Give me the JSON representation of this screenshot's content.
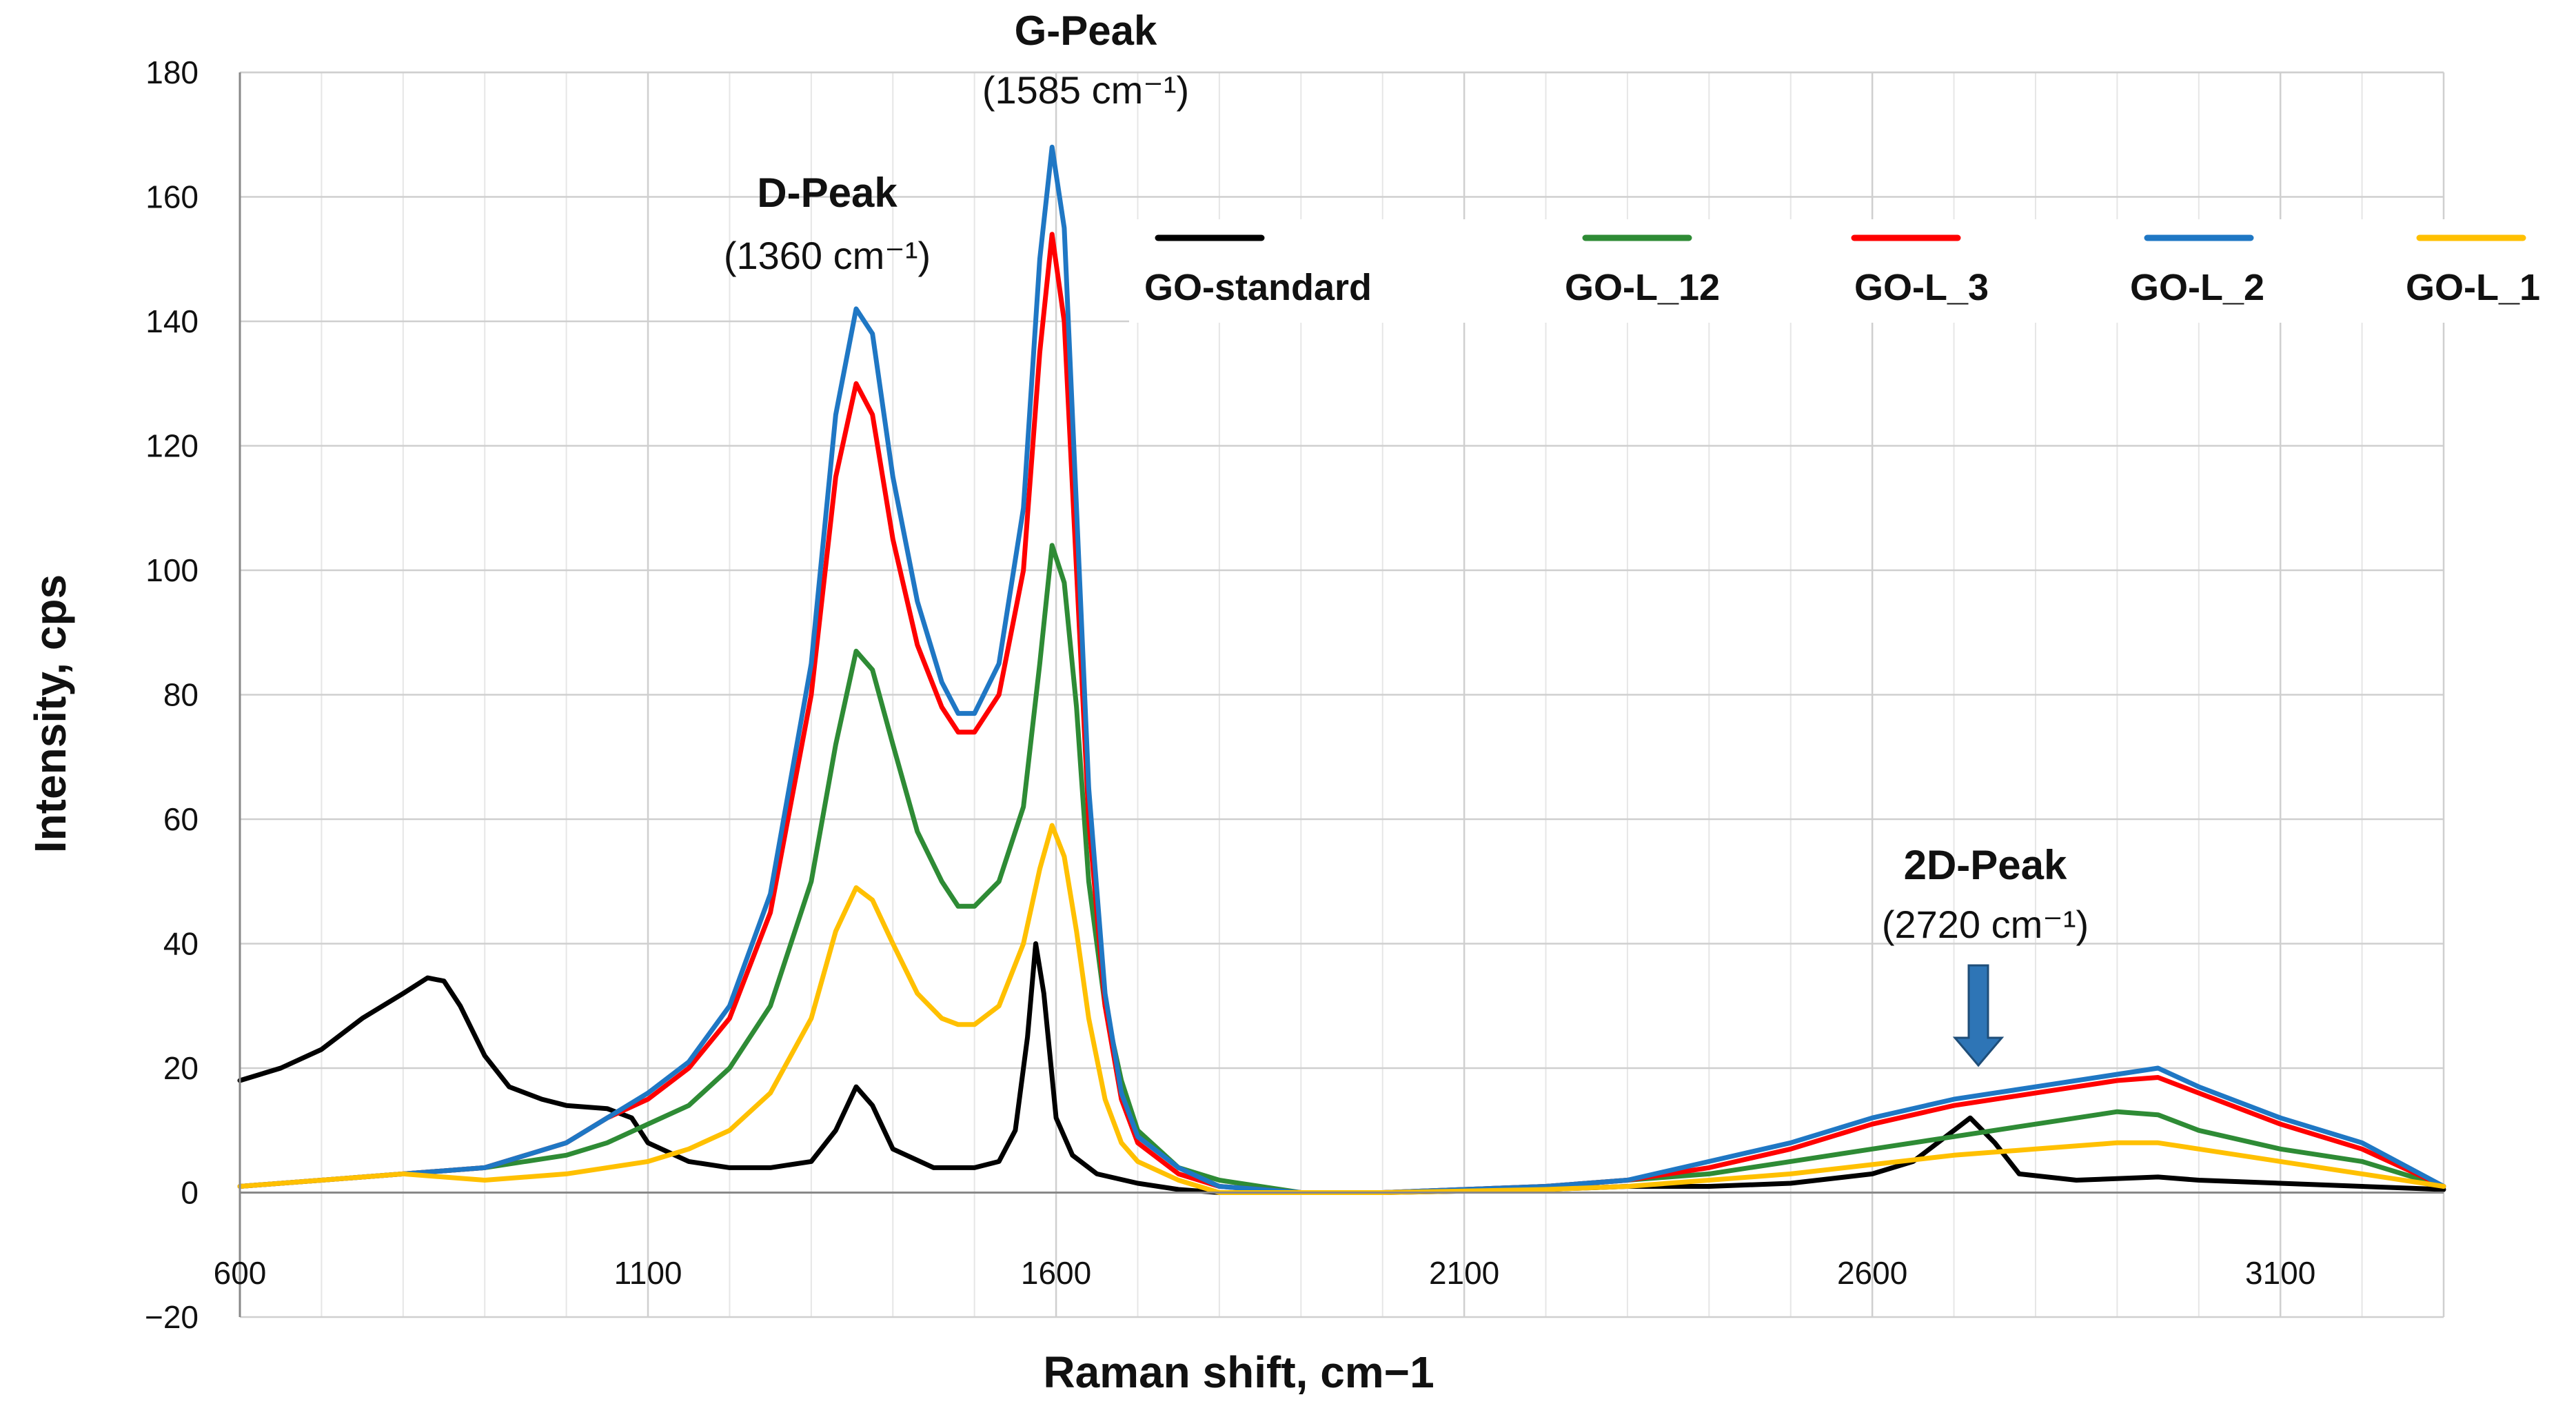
{
  "chart_data": {
    "type": "line",
    "title": "",
    "xlabel": "Raman shift, cm−1",
    "ylabel": "Intensity, cps",
    "xlim": [
      600,
      3300
    ],
    "ylim": [
      -20,
      180
    ],
    "x_ticks": [
      600,
      1100,
      1600,
      2100,
      2600,
      3100
    ],
    "x_tick_labels": [
      "600",
      "1100",
      "1600",
      "2100",
      "2600",
      "3100"
    ],
    "y_ticks": [
      -20,
      0,
      20,
      40,
      60,
      80,
      100,
      120,
      140,
      160,
      180
    ],
    "y_tick_labels": [
      "−20",
      "0",
      "20",
      "40",
      "60",
      "80",
      "100",
      "120",
      "140",
      "160",
      "180"
    ],
    "grid": true,
    "legend_position": "top-right",
    "series": [
      {
        "name": "GO-standard",
        "color": "#000000",
        "points": [
          [
            600,
            18
          ],
          [
            650,
            20
          ],
          [
            700,
            23
          ],
          [
            750,
            28
          ],
          [
            800,
            32
          ],
          [
            830,
            34.5
          ],
          [
            850,
            34
          ],
          [
            870,
            30
          ],
          [
            900,
            22
          ],
          [
            930,
            17
          ],
          [
            970,
            15
          ],
          [
            1000,
            14
          ],
          [
            1050,
            13.5
          ],
          [
            1080,
            12
          ],
          [
            1100,
            8
          ],
          [
            1150,
            5
          ],
          [
            1200,
            4
          ],
          [
            1250,
            4
          ],
          [
            1300,
            5
          ],
          [
            1330,
            10
          ],
          [
            1355,
            17
          ],
          [
            1375,
            14
          ],
          [
            1400,
            7
          ],
          [
            1450,
            4
          ],
          [
            1500,
            4
          ],
          [
            1530,
            5
          ],
          [
            1550,
            10
          ],
          [
            1565,
            25
          ],
          [
            1575,
            40
          ],
          [
            1585,
            32
          ],
          [
            1600,
            12
          ],
          [
            1620,
            6
          ],
          [
            1650,
            3
          ],
          [
            1700,
            1.5
          ],
          [
            1750,
            0.5
          ],
          [
            1800,
            0
          ],
          [
            1900,
            0
          ],
          [
            2000,
            0
          ],
          [
            2200,
            0.5
          ],
          [
            2300,
            1
          ],
          [
            2400,
            1
          ],
          [
            2500,
            1.5
          ],
          [
            2600,
            3
          ],
          [
            2650,
            5
          ],
          [
            2700,
            10
          ],
          [
            2720,
            12
          ],
          [
            2750,
            8
          ],
          [
            2780,
            3
          ],
          [
            2850,
            2
          ],
          [
            2950,
            2.5
          ],
          [
            3000,
            2
          ],
          [
            3100,
            1.5
          ],
          [
            3200,
            1
          ],
          [
            3300,
            0.5
          ]
        ]
      },
      {
        "name": "GO-L_12",
        "color": "#2E8B35",
        "points": [
          [
            600,
            1
          ],
          [
            700,
            2
          ],
          [
            800,
            3
          ],
          [
            900,
            4
          ],
          [
            1000,
            6
          ],
          [
            1050,
            8
          ],
          [
            1100,
            11
          ],
          [
            1150,
            14
          ],
          [
            1200,
            20
          ],
          [
            1250,
            30
          ],
          [
            1300,
            50
          ],
          [
            1330,
            72
          ],
          [
            1355,
            87
          ],
          [
            1375,
            84
          ],
          [
            1400,
            72
          ],
          [
            1430,
            58
          ],
          [
            1460,
            50
          ],
          [
            1480,
            46
          ],
          [
            1500,
            46
          ],
          [
            1530,
            50
          ],
          [
            1560,
            62
          ],
          [
            1580,
            85
          ],
          [
            1595,
            104
          ],
          [
            1610,
            98
          ],
          [
            1625,
            78
          ],
          [
            1640,
            50
          ],
          [
            1660,
            30
          ],
          [
            1680,
            18
          ],
          [
            1700,
            10
          ],
          [
            1750,
            4
          ],
          [
            1800,
            2
          ],
          [
            1900,
            0
          ],
          [
            2000,
            0
          ],
          [
            2200,
            1
          ],
          [
            2300,
            2
          ],
          [
            2400,
            3
          ],
          [
            2500,
            5
          ],
          [
            2600,
            7
          ],
          [
            2700,
            9
          ],
          [
            2800,
            11
          ],
          [
            2900,
            13
          ],
          [
            2950,
            12.5
          ],
          [
            3000,
            10
          ],
          [
            3100,
            7
          ],
          [
            3200,
            5
          ],
          [
            3300,
            1
          ]
        ]
      },
      {
        "name": "GO-L_3",
        "color": "#FF0000",
        "points": [
          [
            600,
            1
          ],
          [
            700,
            2
          ],
          [
            800,
            3
          ],
          [
            900,
            4
          ],
          [
            1000,
            8
          ],
          [
            1050,
            12
          ],
          [
            1100,
            15
          ],
          [
            1150,
            20
          ],
          [
            1200,
            28
          ],
          [
            1250,
            45
          ],
          [
            1300,
            80
          ],
          [
            1330,
            115
          ],
          [
            1355,
            130
          ],
          [
            1375,
            125
          ],
          [
            1400,
            105
          ],
          [
            1430,
            88
          ],
          [
            1460,
            78
          ],
          [
            1480,
            74
          ],
          [
            1500,
            74
          ],
          [
            1530,
            80
          ],
          [
            1560,
            100
          ],
          [
            1580,
            135
          ],
          [
            1595,
            154
          ],
          [
            1610,
            140
          ],
          [
            1625,
            100
          ],
          [
            1640,
            60
          ],
          [
            1660,
            30
          ],
          [
            1680,
            15
          ],
          [
            1700,
            8
          ],
          [
            1750,
            3
          ],
          [
            1800,
            1
          ],
          [
            1900,
            0
          ],
          [
            2000,
            0
          ],
          [
            2200,
            1
          ],
          [
            2300,
            2
          ],
          [
            2400,
            4
          ],
          [
            2500,
            7
          ],
          [
            2600,
            11
          ],
          [
            2700,
            14
          ],
          [
            2800,
            16
          ],
          [
            2900,
            18
          ],
          [
            2950,
            18.5
          ],
          [
            3000,
            16
          ],
          [
            3100,
            11
          ],
          [
            3200,
            7
          ],
          [
            3300,
            1
          ]
        ]
      },
      {
        "name": "GO-L_2",
        "color": "#1F77C4",
        "points": [
          [
            600,
            1
          ],
          [
            700,
            2
          ],
          [
            800,
            3
          ],
          [
            900,
            4
          ],
          [
            1000,
            8
          ],
          [
            1050,
            12
          ],
          [
            1100,
            16
          ],
          [
            1150,
            21
          ],
          [
            1200,
            30
          ],
          [
            1250,
            48
          ],
          [
            1300,
            85
          ],
          [
            1330,
            125
          ],
          [
            1355,
            142
          ],
          [
            1375,
            138
          ],
          [
            1400,
            115
          ],
          [
            1430,
            95
          ],
          [
            1460,
            82
          ],
          [
            1480,
            77
          ],
          [
            1500,
            77
          ],
          [
            1530,
            85
          ],
          [
            1560,
            110
          ],
          [
            1580,
            150
          ],
          [
            1595,
            168
          ],
          [
            1610,
            155
          ],
          [
            1625,
            110
          ],
          [
            1640,
            65
          ],
          [
            1660,
            32
          ],
          [
            1680,
            16
          ],
          [
            1700,
            9
          ],
          [
            1750,
            4
          ],
          [
            1800,
            1
          ],
          [
            1900,
            0
          ],
          [
            2000,
            0
          ],
          [
            2200,
            1
          ],
          [
            2300,
            2
          ],
          [
            2400,
            5
          ],
          [
            2500,
            8
          ],
          [
            2600,
            12
          ],
          [
            2700,
            15
          ],
          [
            2800,
            17
          ],
          [
            2900,
            19
          ],
          [
            2950,
            20
          ],
          [
            3000,
            17
          ],
          [
            3100,
            12
          ],
          [
            3200,
            8
          ],
          [
            3300,
            1
          ]
        ]
      },
      {
        "name": "GO-L_1",
        "color": "#FFC000",
        "points": [
          [
            600,
            1
          ],
          [
            700,
            2
          ],
          [
            800,
            3
          ],
          [
            900,
            2
          ],
          [
            1000,
            3
          ],
          [
            1050,
            4
          ],
          [
            1100,
            5
          ],
          [
            1150,
            7
          ],
          [
            1200,
            10
          ],
          [
            1250,
            16
          ],
          [
            1300,
            28
          ],
          [
            1330,
            42
          ],
          [
            1355,
            49
          ],
          [
            1375,
            47
          ],
          [
            1400,
            40
          ],
          [
            1430,
            32
          ],
          [
            1460,
            28
          ],
          [
            1480,
            27
          ],
          [
            1500,
            27
          ],
          [
            1530,
            30
          ],
          [
            1560,
            40
          ],
          [
            1580,
            52
          ],
          [
            1595,
            59
          ],
          [
            1610,
            54
          ],
          [
            1625,
            42
          ],
          [
            1640,
            28
          ],
          [
            1660,
            15
          ],
          [
            1680,
            8
          ],
          [
            1700,
            5
          ],
          [
            1750,
            2
          ],
          [
            1800,
            0
          ],
          [
            1900,
            0
          ],
          [
            2000,
            0
          ],
          [
            2200,
            0.5
          ],
          [
            2300,
            1
          ],
          [
            2400,
            2
          ],
          [
            2500,
            3
          ],
          [
            2600,
            4.5
          ],
          [
            2700,
            6
          ],
          [
            2800,
            7
          ],
          [
            2900,
            8
          ],
          [
            2950,
            8
          ],
          [
            3000,
            7
          ],
          [
            3100,
            5
          ],
          [
            3200,
            3
          ],
          [
            3300,
            1
          ]
        ]
      }
    ],
    "annotations": [
      {
        "title": "G-Peak",
        "position_label": "(1585 cm⁻¹)",
        "x": 1585,
        "y": 176
      },
      {
        "title": "D-Peak",
        "position_label": "(1360 cm⁻¹)",
        "x": 1360,
        "y": 150
      },
      {
        "title": "2D-Peak",
        "position_label": "(2720 cm⁻¹)",
        "x": 2720,
        "y": 50
      }
    ],
    "arrow": {
      "x": 2720,
      "y_from": 35,
      "y_to": 22,
      "color": "#2E75B6"
    }
  }
}
